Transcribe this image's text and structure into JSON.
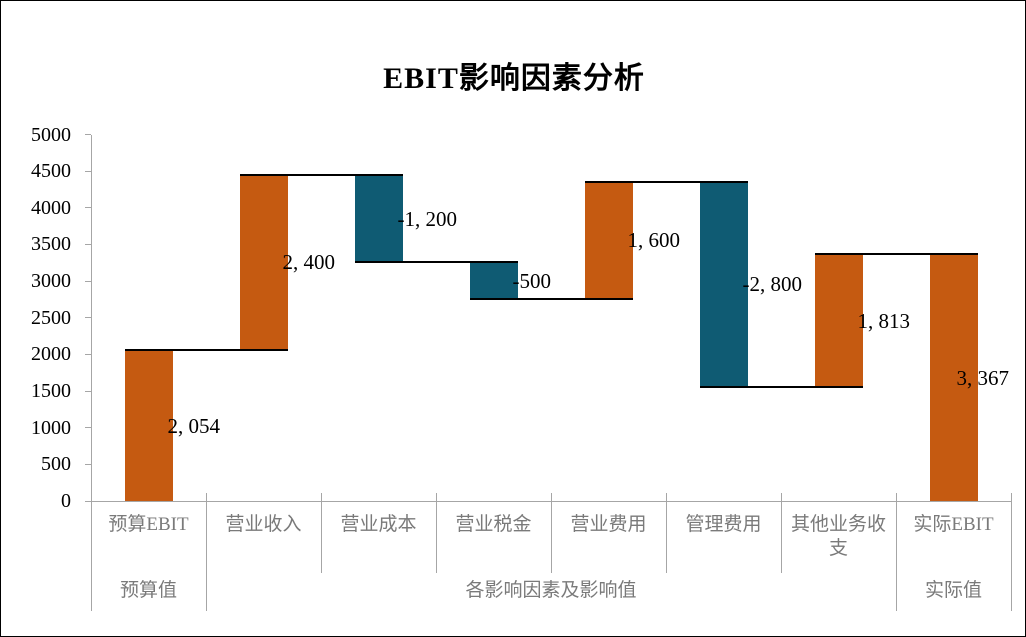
{
  "page": {
    "background": "#FFFFFF",
    "border_color": "#000000"
  },
  "chart_data": {
    "type": "bar",
    "subtype": "waterfall",
    "title": "EBIT影响因素分析",
    "categories": [
      "预算EBIT",
      "营业收入",
      "营业成本",
      "营业税金",
      "营业费用",
      "管理费用",
      "其他业务收支",
      "实际EBIT"
    ],
    "series": [
      {
        "name": "EBIT影响因素",
        "values": [
          2054,
          2400,
          -1200,
          -500,
          1600,
          -2800,
          1813,
          3367
        ]
      }
    ],
    "bar_roles": [
      "total",
      "delta",
      "delta",
      "delta",
      "delta",
      "delta",
      "delta",
      "total"
    ],
    "data_labels": [
      "2, 054",
      "2, 400",
      "-1, 200",
      "-500",
      "1, 600",
      "-2, 800",
      "1, 813",
      "3, 367"
    ],
    "running_levels": [
      2054,
      4454,
      3254,
      2754,
      4354,
      1554,
      3367
    ],
    "group_labels": [
      {
        "label": "预算值",
        "span": 1
      },
      {
        "label": "各影响因素及影响值",
        "span": 6
      },
      {
        "label": "实际值",
        "span": 1
      }
    ],
    "xlabel": "",
    "ylabel": "",
    "ylim": [
      0,
      5000
    ],
    "ytick_step": 500,
    "ytick_labels": [
      "0",
      "500",
      "1000",
      "1500",
      "2000",
      "2500",
      "3000",
      "3500",
      "4000",
      "4500",
      "5000"
    ],
    "grid": "off",
    "legend": "none",
    "colors": {
      "positive_bar": "#C55A11",
      "negative_bar": "#0F5B73",
      "connector": "#000000",
      "axis_line": "#A6A6A6",
      "table_line": "#A6A6A6",
      "category_text": "#7A7A7A",
      "value_text": "#000000",
      "title_text": "#000000"
    }
  }
}
